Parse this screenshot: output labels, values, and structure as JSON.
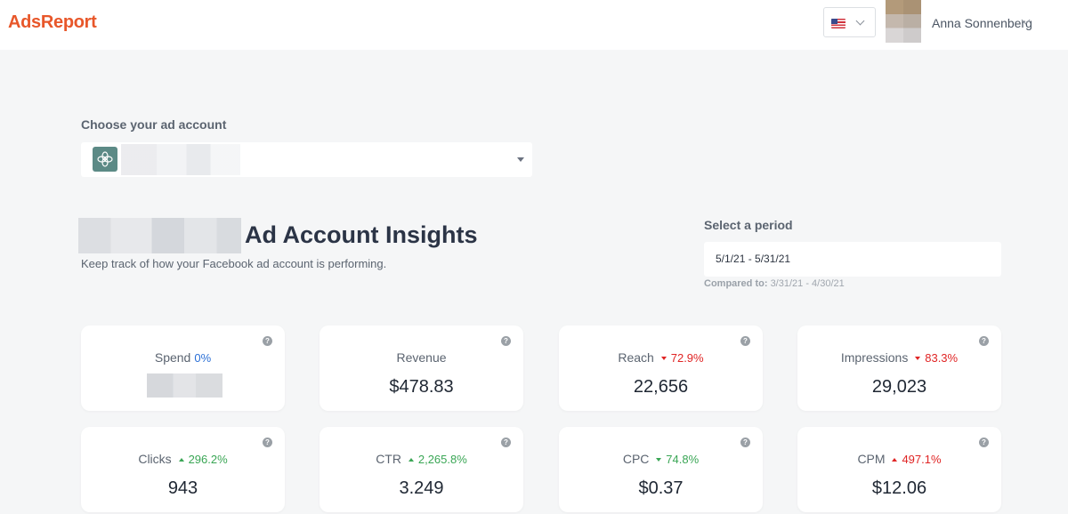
{
  "header": {
    "logo": "AdsReport",
    "language": {
      "flag": "us-flag-icon"
    },
    "user": {
      "name": "Anna Sonnenberg"
    }
  },
  "account": {
    "label": "Choose your ad account",
    "icon": "account-leaf-icon"
  },
  "insights": {
    "title": "Ad Account Insights",
    "subtitle": "Keep track of how your Facebook ad account is performing."
  },
  "period": {
    "label": "Select a period",
    "value": "5/1/21 - 5/31/21",
    "compared_label": "Compared to:",
    "compared_value": "3/31/21 - 4/30/21"
  },
  "metrics": [
    {
      "name": "Spend",
      "change": "0%",
      "direction": "flat",
      "value": ""
    },
    {
      "name": "Revenue",
      "change": "",
      "direction": "none",
      "value": "$478.83"
    },
    {
      "name": "Reach",
      "change": "72.9%",
      "direction": "down",
      "value": "22,656"
    },
    {
      "name": "Impressions",
      "change": "83.3%",
      "direction": "down",
      "value": "29,023"
    },
    {
      "name": "Clicks",
      "change": "296.2%",
      "direction": "up",
      "value": "943"
    },
    {
      "name": "CTR",
      "change": "2,265.8%",
      "direction": "up",
      "value": "3.249"
    },
    {
      "name": "CPC",
      "change": "74.8%",
      "direction": "down-green",
      "value": "$0.37"
    },
    {
      "name": "CPM",
      "change": "497.1%",
      "direction": "up-red",
      "value": "$12.06"
    }
  ],
  "colors": {
    "brand": "#e8572a",
    "positive": "#3aa655",
    "negative": "#e02424",
    "neutral": "#2a6fd6"
  }
}
